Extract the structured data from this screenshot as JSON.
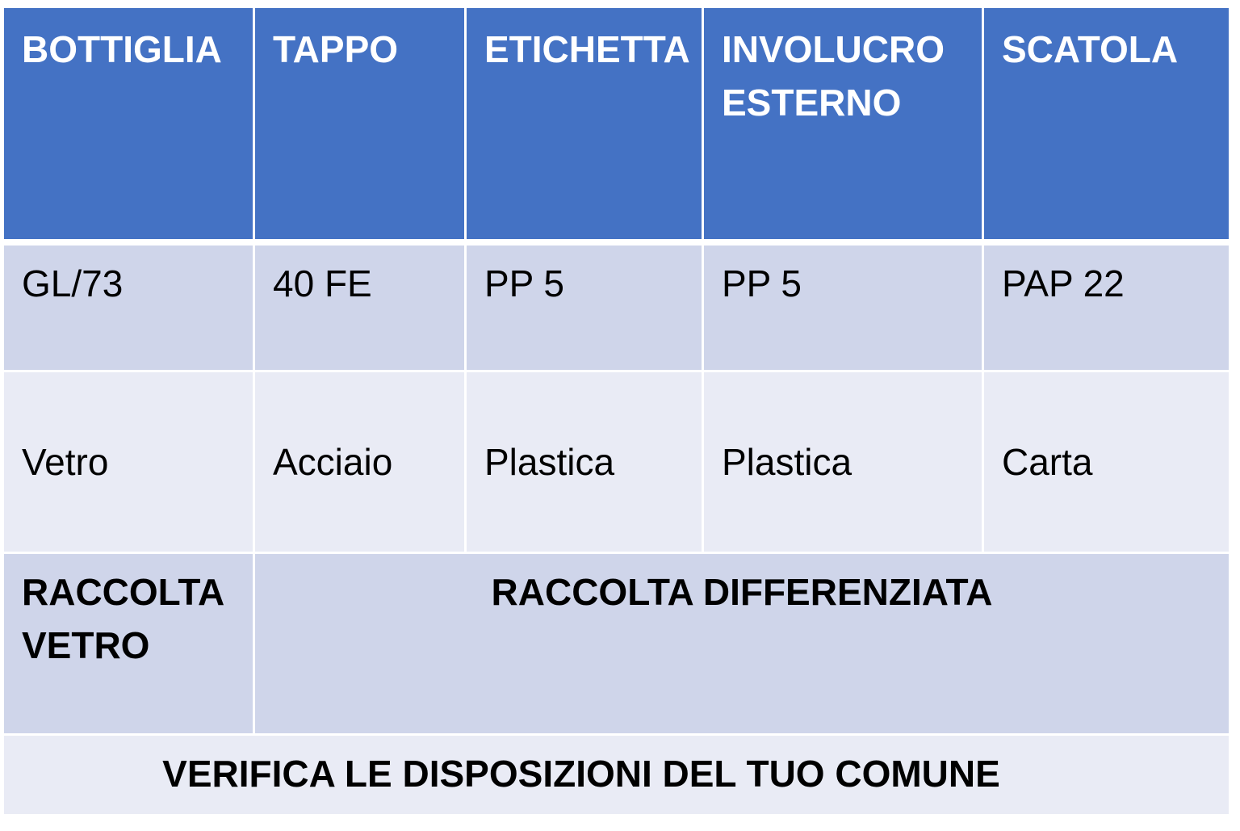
{
  "table": {
    "header": [
      "BOTTIGLIA",
      "TAPPO",
      "ETICHETTA",
      "INVOLUCRO ESTERNO",
      "SCATOLA"
    ],
    "codes": [
      "GL/73",
      "40 FE",
      "PP 5",
      "PP 5",
      "PAP 22"
    ],
    "materials": [
      "Vetro",
      "Acciaio",
      "Plastica",
      "Plastica",
      "Carta"
    ],
    "collection": {
      "first": "RACCOLTA VETRO",
      "rest": "RACCOLTA DIFFERENZIATA"
    },
    "footer": "VERIFICA LE DISPOSIZIONI DEL TUO COMUNE"
  },
  "colors": {
    "header": "#4472C4",
    "row_dark": "#CFD5EA",
    "row_light": "#E9EBF5"
  }
}
